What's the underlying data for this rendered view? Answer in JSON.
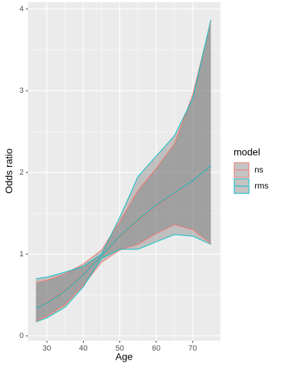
{
  "chart_data": {
    "type": "ribbon-line",
    "x_label": "Age",
    "y_label": "Odds ratio",
    "legend_title": "model",
    "legend_position": "right",
    "grid": true,
    "ribbon_fill": "#5a5a5a",
    "xlim": [
      24.8,
      77.6
    ],
    "xticks": [
      30,
      40,
      50,
      60,
      70
    ],
    "ylim": [
      -0.06,
      4.085
    ],
    "yticks": [
      0,
      1,
      2,
      3,
      4
    ],
    "series": [
      {
        "name": "ns",
        "color": "#f8766d",
        "x": [
          27,
          30,
          35,
          40,
          45,
          50,
          55,
          60,
          65,
          70,
          75
        ],
        "values": [
          0.34,
          0.41,
          0.56,
          0.76,
          0.98,
          1.21,
          1.41,
          1.59,
          1.74,
          1.9,
          2.08
        ],
        "lower": [
          0.18,
          0.24,
          0.38,
          0.62,
          0.9,
          1.05,
          1.12,
          1.25,
          1.36,
          1.3,
          1.13
        ],
        "upper": [
          0.65,
          0.68,
          0.76,
          0.88,
          1.05,
          1.4,
          1.78,
          2.05,
          2.35,
          2.95,
          3.85
        ]
      },
      {
        "name": "rms",
        "color": "#00bfc4",
        "x": [
          27,
          30,
          35,
          40,
          45,
          50,
          55,
          60,
          65,
          70,
          75
        ],
        "values": [
          0.34,
          0.4,
          0.55,
          0.75,
          0.98,
          1.22,
          1.42,
          1.6,
          1.75,
          1.9,
          2.08
        ],
        "lower": [
          0.17,
          0.22,
          0.35,
          0.6,
          0.95,
          1.06,
          1.06,
          1.15,
          1.24,
          1.22,
          1.12
        ],
        "upper": [
          0.7,
          0.72,
          0.78,
          0.85,
          1.0,
          1.45,
          1.95,
          2.2,
          2.45,
          2.9,
          3.87
        ]
      }
    ]
  }
}
